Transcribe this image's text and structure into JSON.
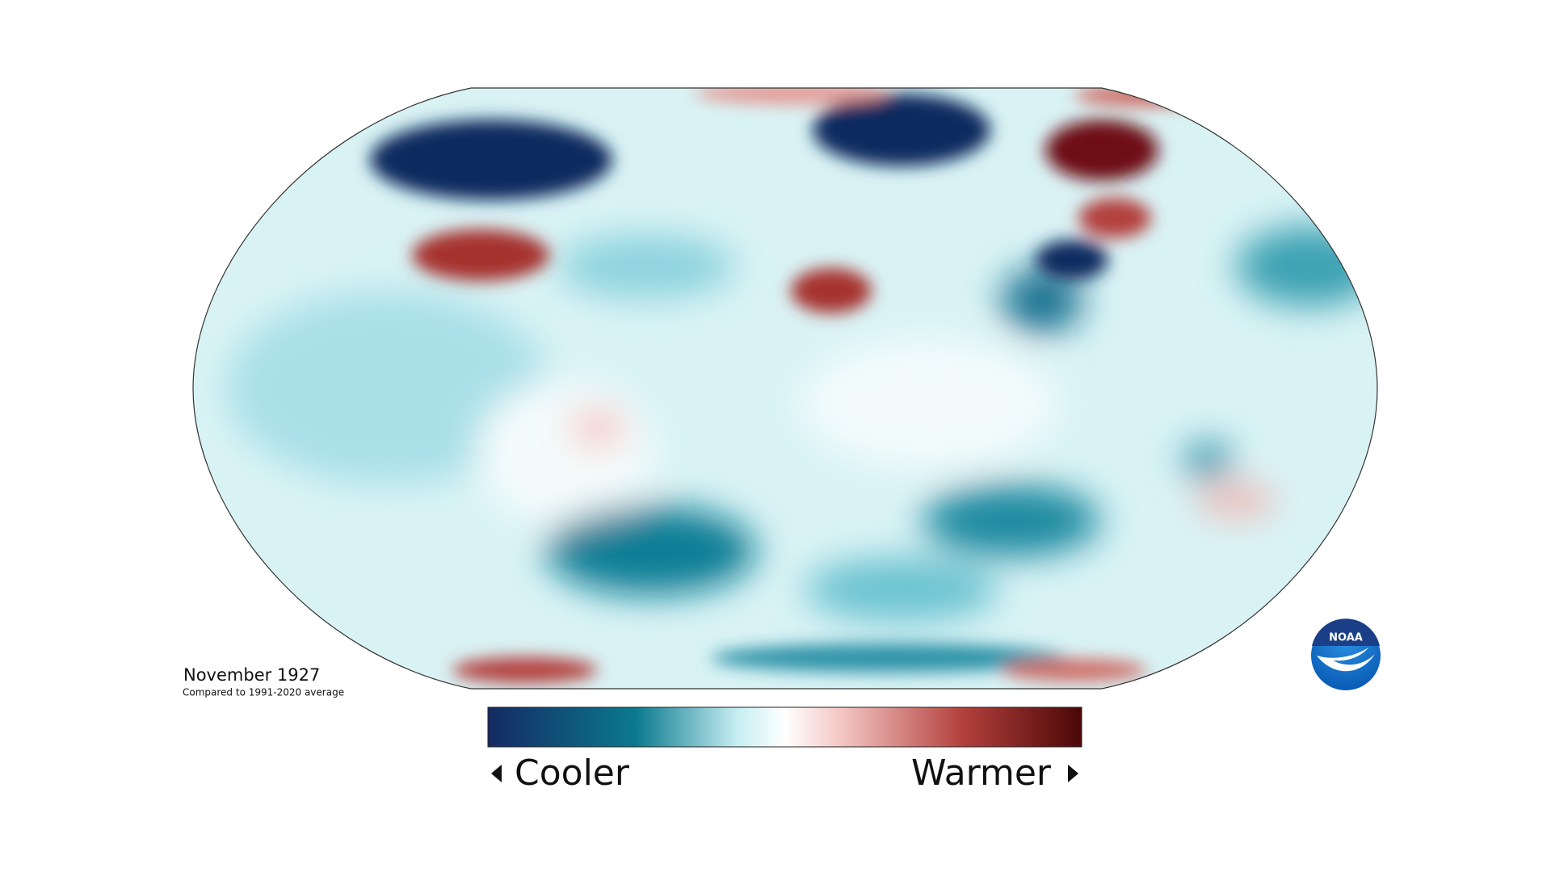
{
  "map": {
    "title": "November 1927",
    "subtitle": "Compared to 1991-2020 average"
  },
  "legend": {
    "low_label": "Cooler",
    "high_label": "Warmer"
  },
  "logo": {
    "text": "NOAA"
  }
}
